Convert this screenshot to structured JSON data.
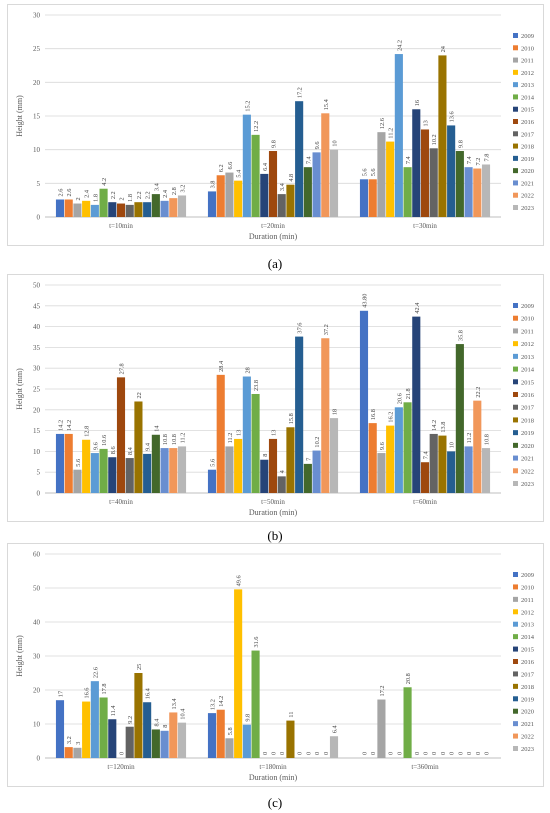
{
  "colors": [
    "#4472c4",
    "#ed7d31",
    "#a5a5a5",
    "#ffc000",
    "#5b9bd5",
    "#70ad47",
    "#264478",
    "#9e480e",
    "#636363",
    "#997300",
    "#255e91",
    "#43682b",
    "#698ed0",
    "#f1975a",
    "#b7b7b7"
  ],
  "chart_data": [
    {
      "type": "bar",
      "panel_label": "(a)",
      "xlabel": "Duration (min)",
      "ylabel": "Height (mm)",
      "ylim": [
        0,
        30
      ],
      "yticks": [
        0,
        5,
        10,
        15,
        20,
        25,
        30
      ],
      "categories": [
        "t=10min",
        "t=20min",
        "t=30min"
      ],
      "series_names": [
        "2009",
        "2010",
        "2011",
        "2012",
        "2013",
        "2014",
        "2015",
        "2016",
        "2017",
        "2018",
        "2019",
        "2020",
        "2021",
        "2022",
        "2023"
      ],
      "values": [
        [
          2.6,
          2.6,
          2,
          2.4,
          1.8,
          4.2,
          2.2,
          2,
          1.8,
          2.2,
          2.2,
          3.4,
          2.4,
          2.8,
          3.2
        ],
        [
          3.8,
          6.2,
          6.6,
          5.4,
          15.2,
          12.2,
          6.4,
          9.8,
          3.4,
          4.8,
          17.2,
          7.4,
          9.6,
          15.4,
          10
        ],
        [
          5.6,
          5.6,
          12.6,
          11.2,
          24.2,
          7.4,
          16,
          13,
          10.2,
          24,
          13.6,
          9.8,
          7.4,
          7.2,
          7.8
        ]
      ],
      "labels": [
        [
          "2.6",
          "2.6",
          "2",
          "2.4",
          "1.8",
          "4.2",
          "2.2",
          "2",
          "1.8",
          "2.2",
          "2.2",
          "3.4",
          "2.4",
          "2.8",
          "3.2"
        ],
        [
          "3.8",
          "6.2",
          "6.6",
          "5.4",
          "15.2",
          "12.2",
          "6.4",
          "9.8",
          "3.4",
          "4.8",
          "17.2",
          "7.4",
          "9.6",
          "15.4",
          "10"
        ],
        [
          "5.6",
          "5.6",
          "12.6",
          "11.2",
          "24.2",
          "7.4",
          "16",
          "13",
          "10.2",
          "24",
          "13.6",
          "9.8",
          "7.4",
          "7.2",
          "7.8"
        ]
      ],
      "legend": "right",
      "grid": true
    },
    {
      "type": "bar",
      "panel_label": "(b)",
      "xlabel": "Duration (min)",
      "ylabel": "Height (mm)",
      "ylim": [
        0,
        50
      ],
      "yticks": [
        0,
        5,
        10,
        15,
        20,
        25,
        30,
        35,
        40,
        45,
        50
      ],
      "categories": [
        "t=40min",
        "t=50min",
        "t=60min"
      ],
      "series_names": [
        "2009",
        "2010",
        "2011",
        "2012",
        "2013",
        "2014",
        "2015",
        "2016",
        "2017",
        "2018",
        "2019",
        "2020",
        "2021",
        "2022",
        "2023"
      ],
      "values": [
        [
          14.2,
          14.2,
          5.6,
          12.8,
          9.6,
          10.6,
          8.6,
          27.8,
          8.4,
          22,
          9.4,
          14,
          10.8,
          10.8,
          11.2
        ],
        [
          5.6,
          28.4,
          11.2,
          13,
          28,
          23.8,
          8,
          13,
          4,
          15.8,
          37.6,
          7,
          10.2,
          37.2,
          18
        ],
        [
          43.8,
          16.8,
          9.6,
          16.2,
          20.6,
          21.8,
          42.4,
          7.4,
          14.2,
          13.8,
          10,
          35.8,
          11.2,
          22.2,
          10.8
        ]
      ],
      "labels": [
        [
          "14.2",
          "14.2",
          "5.6",
          "12.8",
          "9.6",
          "10.6",
          "8.6",
          "27.8",
          "8.4",
          "22",
          "9.4",
          "14",
          "10.8",
          "10.8",
          "11.2"
        ],
        [
          "5.6",
          "28.4",
          "11.2",
          "13",
          "28",
          "23.8",
          "8",
          "13",
          "4",
          "15.8",
          "37.6",
          "7",
          "10.2",
          "37.2",
          "18"
        ],
        [
          "43.80",
          "16.8",
          "9.6",
          "16.2",
          "20.6",
          "21.8",
          "42.4",
          "7.4",
          "14.2",
          "13.8",
          "10",
          "35.8",
          "11.2",
          "22.2",
          "10.8"
        ]
      ],
      "legend": "right",
      "grid": true
    },
    {
      "type": "bar",
      "panel_label": "(c)",
      "xlabel": "Duration (min)",
      "ylabel": "Height (mm)",
      "ylim": [
        0,
        60
      ],
      "yticks": [
        0,
        10,
        20,
        30,
        40,
        50,
        60
      ],
      "categories": [
        "t=120min",
        "t=180min",
        "t=360min"
      ],
      "series_names": [
        "2009",
        "2010",
        "2011",
        "2012",
        "2013",
        "2014",
        "2015",
        "2016",
        "2017",
        "2018",
        "2019",
        "2020",
        "2021",
        "2022",
        "2023"
      ],
      "values": [
        [
          17,
          3.2,
          3,
          16.6,
          22.6,
          17.8,
          11.4,
          0,
          9.2,
          25,
          16.4,
          8.4,
          8,
          13.4,
          10.4
        ],
        [
          13.2,
          14.2,
          5.8,
          49.6,
          9.8,
          31.6,
          0,
          0,
          0,
          11,
          0,
          0,
          0,
          0,
          6.4
        ],
        [
          0,
          0,
          17.2,
          0,
          0,
          20.8,
          0,
          0,
          0,
          0,
          0,
          0,
          0,
          0,
          0
        ]
      ],
      "labels": [
        [
          "17",
          "3.2",
          "3",
          "16.6",
          "22.6",
          "17.8",
          "11.4",
          "0",
          "9.2",
          "25",
          "16.4",
          "8.4",
          "8",
          "13.4",
          "10.4"
        ],
        [
          "13.2",
          "14.2",
          "5.8",
          "49.6",
          "9.8",
          "31.6",
          "0",
          "0",
          "0",
          "11",
          "0",
          "0",
          "0",
          "0",
          "6.4"
        ],
        [
          "0",
          "0",
          "17.2",
          "0",
          "0",
          "20.8",
          "0",
          "0",
          "0",
          "0",
          "0",
          "0",
          "0",
          "0",
          "0"
        ]
      ],
      "legend": "right",
      "grid": true
    }
  ]
}
